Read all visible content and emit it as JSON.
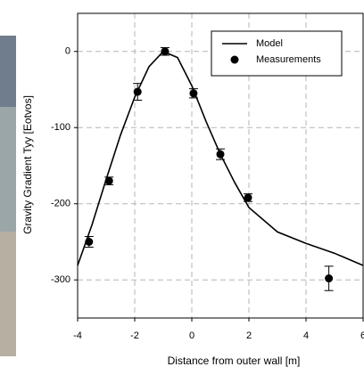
{
  "chart_data": {
    "type": "scatter",
    "x_label": "Distance from outer wall [m]",
    "y_label": "Gravity Gradient Tyy [Eotvos]",
    "xlim": [
      -4,
      6
    ],
    "ylim": [
      -350,
      50
    ],
    "xticks": [
      -4,
      -2,
      0,
      2,
      4,
      6
    ],
    "yticks": [
      0,
      -100,
      -200,
      -300
    ],
    "grid": true,
    "legend": "upper right",
    "series": [
      {
        "name": "Model",
        "color": "#000000",
        "style": "line",
        "x": [
          -4,
          -3.5,
          -3,
          -2.5,
          -2,
          -1.5,
          -1,
          -0.5,
          0,
          0.5,
          1,
          1.5,
          2,
          3,
          4,
          5,
          6
        ],
        "values": [
          -281,
          -228,
          -168,
          -110,
          -60,
          -20,
          0,
          -8,
          -45,
          -92,
          -135,
          -172,
          -205,
          -237,
          -252,
          -265,
          -281
        ]
      },
      {
        "name": "Measurements",
        "color": "#000000",
        "style": "points",
        "x": [
          -3.6,
          -2.9,
          -1.9,
          -0.94,
          0.06,
          1.0,
          1.97,
          4.8
        ],
        "values": [
          -250,
          -170,
          -53,
          0,
          -55,
          -135,
          -192,
          -298
        ],
        "errors": [
          7,
          5,
          11,
          5,
          6,
          7,
          5,
          16
        ]
      }
    ]
  }
}
